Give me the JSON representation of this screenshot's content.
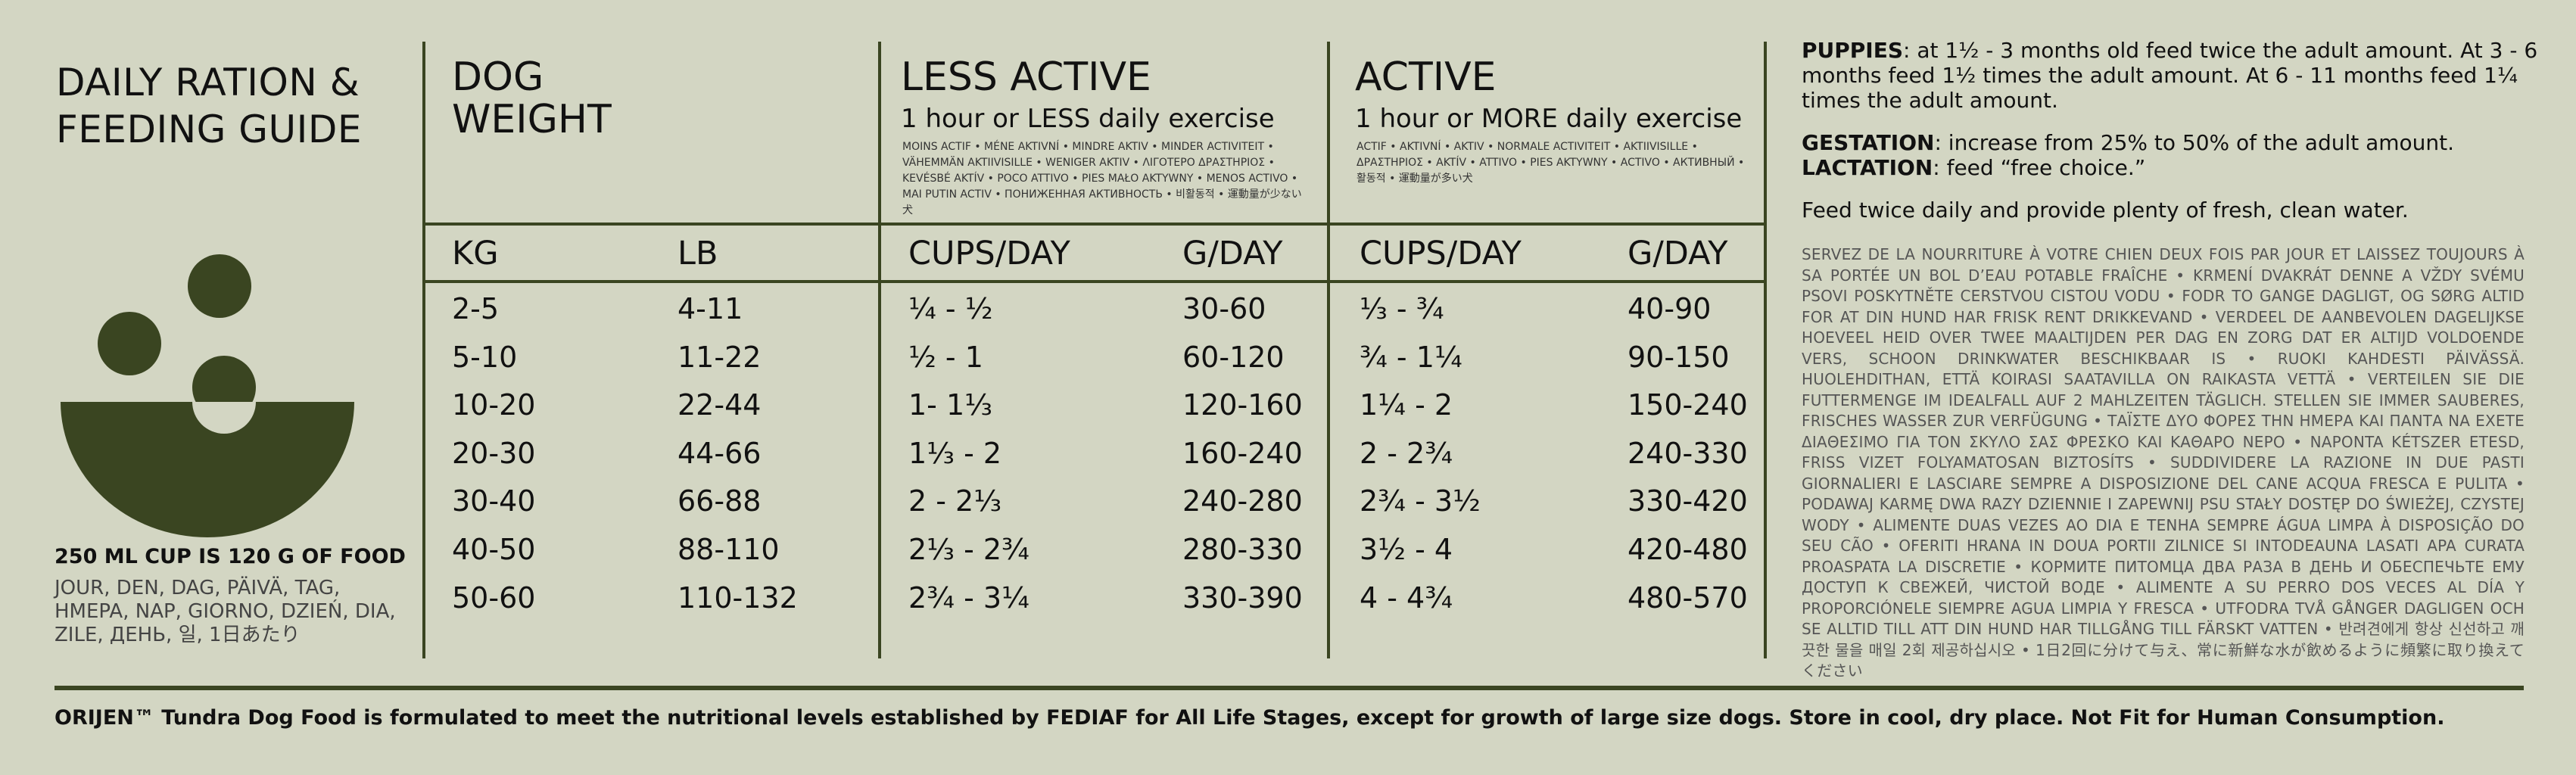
{
  "title": "DAILY RATION & FEEDING GUIDE",
  "title_lines": [
    "DAILY RATION &",
    "FEEDING GUIDE"
  ],
  "cup_note": "250 ML CUP IS 120 G OF FOOD",
  "cup_languages": "JOUR, DEN, DAG, PÄIVÄ, TAG, HMEPA, NAP, GIORNO, DZIEŃ, DIA, ZILE, ДЕНЬ, 일, 1日あたり",
  "dog_weight": {
    "heading_lines": [
      "DOG",
      "WEIGHT"
    ],
    "col_kg": "KG",
    "col_lb": "LB"
  },
  "less_active": {
    "heading": "LESS ACTIVE",
    "subheading": "1 hour or LESS daily exercise",
    "translations": "MOINS ACTIF • MÉNE AKTIVNÍ • MINDRE AKTIV • MINDER ACTIVITEIT • VÄHEMMÄN AKTIIVISILLE • WENIGER AKTIV • ΛΙΓΟΤΕΡΟ ΔΡΑΣΤΗΡΙΟΣ • KEVÉSBÉ AKTÍV • POCO ATTIVO • PIES MAŁO AKTYWNY • MENOS ACTIVO • MAI PUTIN ACTIV • ПОНИЖЕННАЯ АКТИВНОСТЬ • 비활동적 • 運動量が少ない犬",
    "col_cups": "CUPS/DAY",
    "col_g": "G/DAY"
  },
  "active": {
    "heading": "ACTIVE",
    "subheading": "1 hour or MORE daily exercise",
    "translations": "ACTIF • AKTIVNÍ • AKTIV • NORMALE ACTIVITEIT • AKTIIVISILLE • ΔΡΑΣΤΗΡΙΟΣ • AKTÍV • ATTIVO • PIES AKTYWNY • ACTIVO • АКТИВНЫЙ • 활동적 • 運動量が多い犬",
    "col_cups": "CUPS/DAY",
    "col_g": "G/DAY"
  },
  "rows": [
    {
      "kg": "2-5",
      "lb": "4-11",
      "less_cups": "¼ - ½",
      "less_g": "30-60",
      "active_cups": "⅓ -  ¾",
      "active_g": "40-90"
    },
    {
      "kg": "5-10",
      "lb": "11-22",
      "less_cups": "½ - 1",
      "less_g": "60-120",
      "active_cups": "¾ - 1¼",
      "active_g": "90-150"
    },
    {
      "kg": "10-20",
      "lb": "22-44",
      "less_cups": "1- 1⅓",
      "less_g": "120-160",
      "active_cups": "1¼ - 2",
      "active_g": "150-240"
    },
    {
      "kg": "20-30",
      "lb": "44-66",
      "less_cups": "1⅓ - 2",
      "less_g": "160-240",
      "active_cups": "2 - 2¾",
      "active_g": "240-330"
    },
    {
      "kg": "30-40",
      "lb": "66-88",
      "less_cups": "2 - 2⅓",
      "less_g": "240-280",
      "active_cups": "2¾ - 3½",
      "active_g": "330-420"
    },
    {
      "kg": "40-50",
      "lb": "88-110",
      "less_cups": "2⅓ - 2¾",
      "less_g": "280-330",
      "active_cups": "3½ - 4",
      "active_g": "420-480"
    },
    {
      "kg": "50-60",
      "lb": "110-132",
      "less_cups": "2¾ - 3¼",
      "less_g": "330-390",
      "active_cups": "4 - 4¾",
      "active_g": "480-570"
    }
  ],
  "right": {
    "puppies_label": "PUPPIES",
    "puppies_text": ": at 1½ - 3 months old feed twice the adult amount. At  3 - 6 months feed 1½ times the adult amount. At 6 - 11 months feed 1¼ times the adult amount.",
    "gestation_label": "GESTATION",
    "gestation_text": ": increase from 25% to 50% of the adult amount.",
    "lactation_label": "LACTATION",
    "lactation_text": ": feed “free choice.”",
    "feed_note": "Feed twice daily and provide plenty of fresh, clean water.",
    "multilingual": "SERVEZ DE LA NOURRITURE À VOTRE CHIEN DEUX FOIS PAR JOUR ET LAISSEZ TOUJOURS À SA PORTÉE UN BOL D’EAU POTABLE FRAÎCHE • KRMENÍ DVAKRÁT DENNE A VŽDY SVÉMU PSOVI POSKYTNĚTE CERSTVOU CISTOU VODU • FODR TO GANGE DAGLIGT, OG SØRG ALTID FOR AT DIN HUND HAR FRISK RENT DRIKKEVAND • VERDEEL DE AANBEVOLEN DAGELIJKSE HOEVEEL HEID OVER TWEE MAALTIJDEN PER DAG EN ZORG DAT ER ALTIJD VOLDOENDE VERS, SCHOON DRINKWATER BESCHIKBAAR IS • RUOKI KAHDESTI PÄIVÄSSÄ. HUOLEHDITHAN, ETTÄ KOIRASI SAATAVILLA ON RAIKASTA VETTÄ • VERTEILEN SIE DIE FUTTERMENGE IM IDEALFALL AUF 2 MAHLZEITEN TÄGLICH. STELLEN SIE IMMER SAUBERES, FRISCHES WASSER ZUR VERFÜGUNG • ΤΑΪΣΤΕ ΔΥΟ ΦΟΡΕΣ ΤΗΝ ΗΜΕΡΑ ΚΑΙ ΠΑΝΤΑ ΝΑ ΕΧΕΤΕ ΔΙΑΘΕΣΙΜΟ ΓΙΑ ΤΟΝ ΣΚΥΛΟ ΣΑΣ ΦΡΕΣΚΟ ΚΑΙ ΚΑΘΑΡΟ ΝΕΡΟ • NAPONTA KÉTSZER ETESD, FRISS VIZET FOLYAMATOSAN BIZTOSÍTS • SUDDIVIDERE LA RAZIONE IN DUE PASTI GIORNALIERI E LASCIARE SEMPRE A DISPOSIZIONE DEL CANE ACQUA FRESCA E PULITA • PODAWAJ KARMĘ DWA RAZY DZIENNIE I ZAPEWNIJ PSU STAŁY DOSTĘP DO ŚWIEŻEJ, CZYSTEJ WODY • ALIMENTE DUAS VEZES AO DIA E TENHA SEMPRE ÁGUA LIMPA À DISPOSIÇÃO DO SEU CÃO • OFERITI HRANA IN DOUA PORTII ZILNICE SI INTODEAUNA LASATI APA CURATA PROASPATA LA DISCRETIE • КОРМИТЕ ПИТОМЦА ДВА РАЗА В ДЕНЬ И ОБЕСПЕЧЬТЕ ЕМУ ДОСТУП К СВЕЖЕЙ, ЧИСТОЙ ВОДЕ • ALIMENTE A SU PERRO DOS VECES AL DÍA Y PROPORCIÓNELE SIEMPRE AGUA LIMPIA Y FRESCA • UTFODRA TVÅ GÅNGER DAGLIGEN OCH SE ALLTID TILL ATT DIN HUND HAR TILLGÅNG TILL FÄRSKT VATTEN • 반려견에게 항상 신선하고 깨끗한 물을 매일 2회 제공하십시오 • 1日2回に分けて与え、常に新鮮な水が飲めるように頻繁に取り換えてください"
  },
  "footer": "ORIJEN™ Tundra Dog Food is formulated to meet the nutritional levels established by FEDIAF for All Life Stages, except for growth of large size dogs. Store in cool, dry place. Not Fit for Human Consumption.",
  "colors": {
    "background": "#d3d6c3",
    "accent": "#3a4521",
    "text": "#111111"
  }
}
